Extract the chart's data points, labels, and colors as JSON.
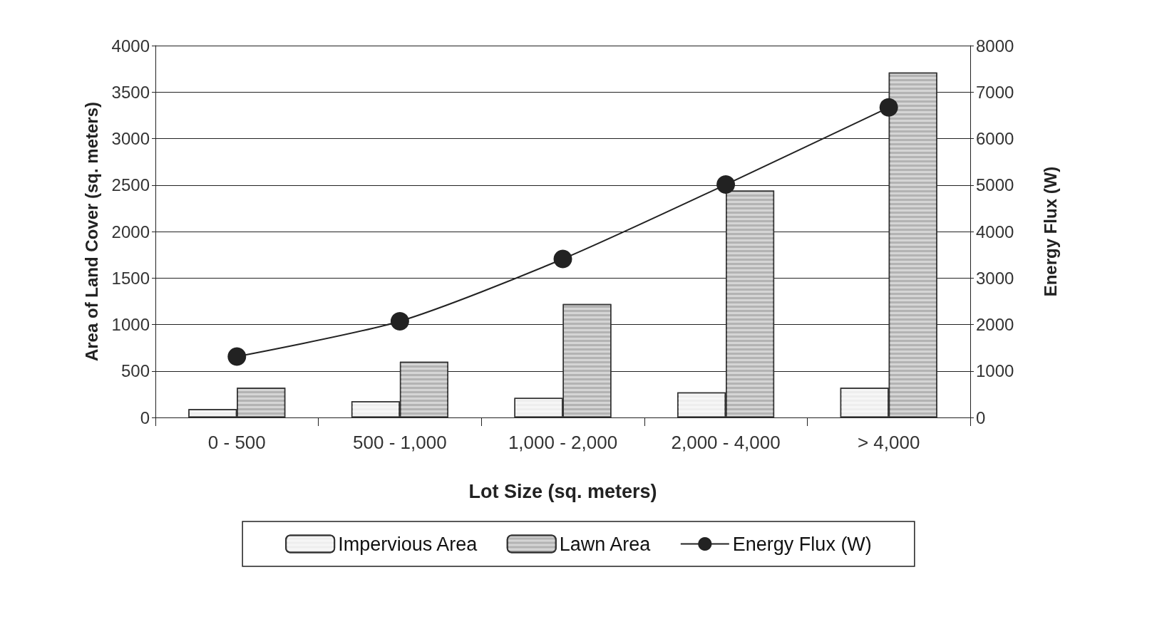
{
  "chart_data": {
    "type": "bar",
    "xlabel": "Lot Size (sq. meters)",
    "ylabel": "Area of Land Cover (sq. meters)",
    "y2label": "Energy Flux (W)",
    "categories": [
      "0 - 500",
      "500 - 1,000",
      "1,000 - 2,000",
      "2,000 - 4,000",
      "> 4,000"
    ],
    "series": [
      {
        "name": "Impervious Area",
        "color": "#eeeeee",
        "values": [
          90,
          175,
          210,
          270,
          320
        ]
      },
      {
        "name": "Lawn Area",
        "color": "#b3b3b3",
        "values": [
          320,
          600,
          1220,
          2440,
          3710
        ]
      },
      {
        "name": "Energy Flux (W)",
        "type": "line",
        "axis": "y2",
        "color": "#222222",
        "marker": "circle",
        "line_style": "solid",
        "values": [
          1310,
          2070,
          3410,
          5010,
          6670
        ]
      }
    ],
    "ylim": [
      0,
      4000
    ],
    "yticks": [
      0,
      500,
      1000,
      1500,
      2000,
      2500,
      3000,
      3500,
      4000
    ],
    "y2lim": [
      0,
      8000
    ],
    "y2ticks": [
      0,
      1000,
      2000,
      3000,
      4000,
      5000,
      6000,
      7000,
      8000
    ],
    "grid": "y",
    "legend": "bottom"
  }
}
